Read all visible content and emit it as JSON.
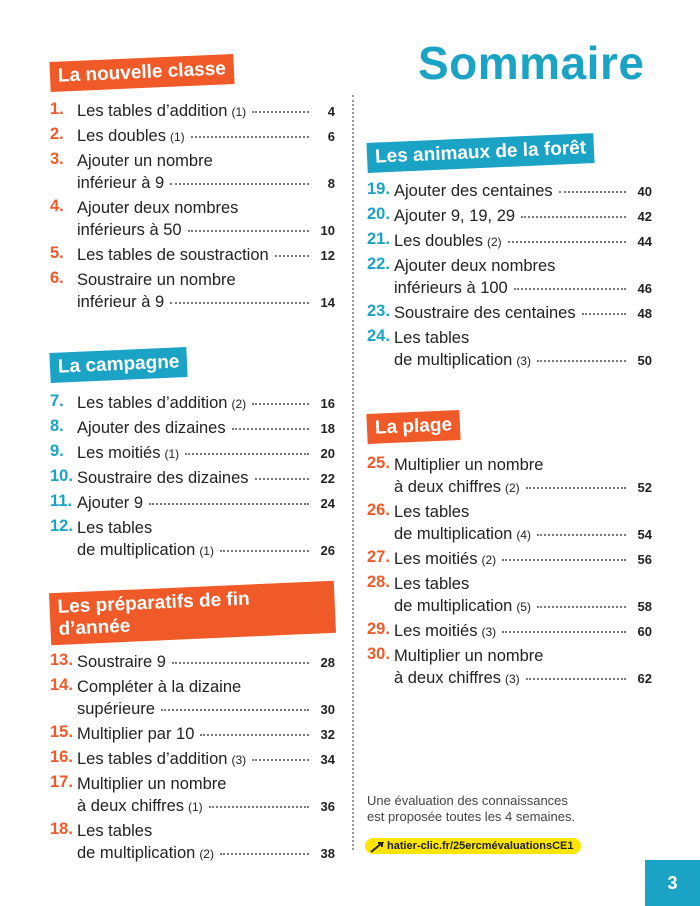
{
  "header": {
    "title": "Sommaire"
  },
  "sections": [
    {
      "heading": "La nouvelle classe",
      "entries": [
        {
          "number": "1.",
          "lines": [
            "Les tables d’addition"
          ],
          "note": "(1)",
          "page": 4
        },
        {
          "number": "2.",
          "lines": [
            "Les doubles"
          ],
          "note": "(1)",
          "page": 6
        },
        {
          "number": "3.",
          "lines": [
            "Ajouter un nombre",
            "inférieur à 9"
          ],
          "page": 8
        },
        {
          "number": "4.",
          "lines": [
            "Ajouter deux nombres",
            "inférieurs à 50"
          ],
          "page": 10
        },
        {
          "number": "5.",
          "lines": [
            "Les tables de soustraction"
          ],
          "page": 12
        },
        {
          "number": "6.",
          "lines": [
            "Soustraire un nombre",
            "inférieur à 9"
          ],
          "page": 14
        }
      ]
    },
    {
      "heading": "La campagne",
      "entries": [
        {
          "number": "7.",
          "lines": [
            "Les tables d’addition"
          ],
          "note": "(2)",
          "page": 16
        },
        {
          "number": "8.",
          "lines": [
            "Ajouter des dizaines"
          ],
          "page": 18
        },
        {
          "number": "9.",
          "lines": [
            "Les moitiés"
          ],
          "note": "(1)",
          "page": 20
        },
        {
          "number": "10.",
          "lines": [
            "Soustraire des dizaines"
          ],
          "page": 22
        },
        {
          "number": "11.",
          "lines": [
            "Ajouter 9"
          ],
          "page": 24
        },
        {
          "number": "12.",
          "lines": [
            "Les tables",
            "de multiplication"
          ],
          "note": "(1)",
          "page": 26
        }
      ]
    },
    {
      "heading": "Les préparatifs de fin d’année",
      "entries": [
        {
          "number": "13.",
          "lines": [
            "Soustraire 9"
          ],
          "page": 28
        },
        {
          "number": "14.",
          "lines": [
            "Compléter à la dizaine",
            "supérieure"
          ],
          "page": 30
        },
        {
          "number": "15.",
          "lines": [
            "Multiplier par 10"
          ],
          "page": 32
        },
        {
          "number": "16.",
          "lines": [
            "Les tables d’addition"
          ],
          "note": "(3)",
          "page": 34
        },
        {
          "number": "17.",
          "lines": [
            "Multiplier un nombre",
            "à deux chiffres"
          ],
          "note": "(1)",
          "page": 36
        },
        {
          "number": "18.",
          "lines": [
            "Les tables",
            "de multiplication"
          ],
          "note": "(2)",
          "page": 38
        }
      ]
    },
    {
      "heading": "Les animaux de la forêt",
      "entries": [
        {
          "number": "19.",
          "lines": [
            "Ajouter des centaines"
          ],
          "page": 40
        },
        {
          "number": "20.",
          "lines": [
            "Ajouter 9, 19, 29"
          ],
          "page": 42
        },
        {
          "number": "21.",
          "lines": [
            "Les doubles"
          ],
          "note": "(2)",
          "page": 44
        },
        {
          "number": "22.",
          "lines": [
            "Ajouter deux nombres",
            "inférieurs à 100"
          ],
          "page": 46
        },
        {
          "number": "23.",
          "lines": [
            "Soustraire des centaines"
          ],
          "page": 48
        },
        {
          "number": "24.",
          "lines": [
            "Les tables",
            "de multiplication"
          ],
          "note": "(3)",
          "page": 50
        }
      ]
    },
    {
      "heading": "La plage",
      "entries": [
        {
          "number": "25.",
          "lines": [
            "Multiplier un nombre",
            "à deux chiffres"
          ],
          "note": "(2)",
          "page": 52
        },
        {
          "number": "26.",
          "lines": [
            "Les tables",
            "de multiplication"
          ],
          "note": "(4)",
          "page": 54
        },
        {
          "number": "27.",
          "lines": [
            "Les moitiés"
          ],
          "note": "(2)",
          "page": 56
        },
        {
          "number": "28.",
          "lines": [
            "Les tables",
            "de multiplication"
          ],
          "note": "(5)",
          "page": 58
        },
        {
          "number": "29.",
          "lines": [
            "Les moitiés"
          ],
          "note": "(3)",
          "page": 60
        },
        {
          "number": "30.",
          "lines": [
            "Multiplier un nombre",
            "à deux chiffres"
          ],
          "note": "(3)",
          "page": 62
        }
      ]
    }
  ],
  "footer": {
    "lines": [
      "Une évaluation des connaissances",
      "est proposée toutes les 4 semaines."
    ],
    "link": "hatier-clic.fr/25ercmévaluationsCE1",
    "page_number": 3
  }
}
